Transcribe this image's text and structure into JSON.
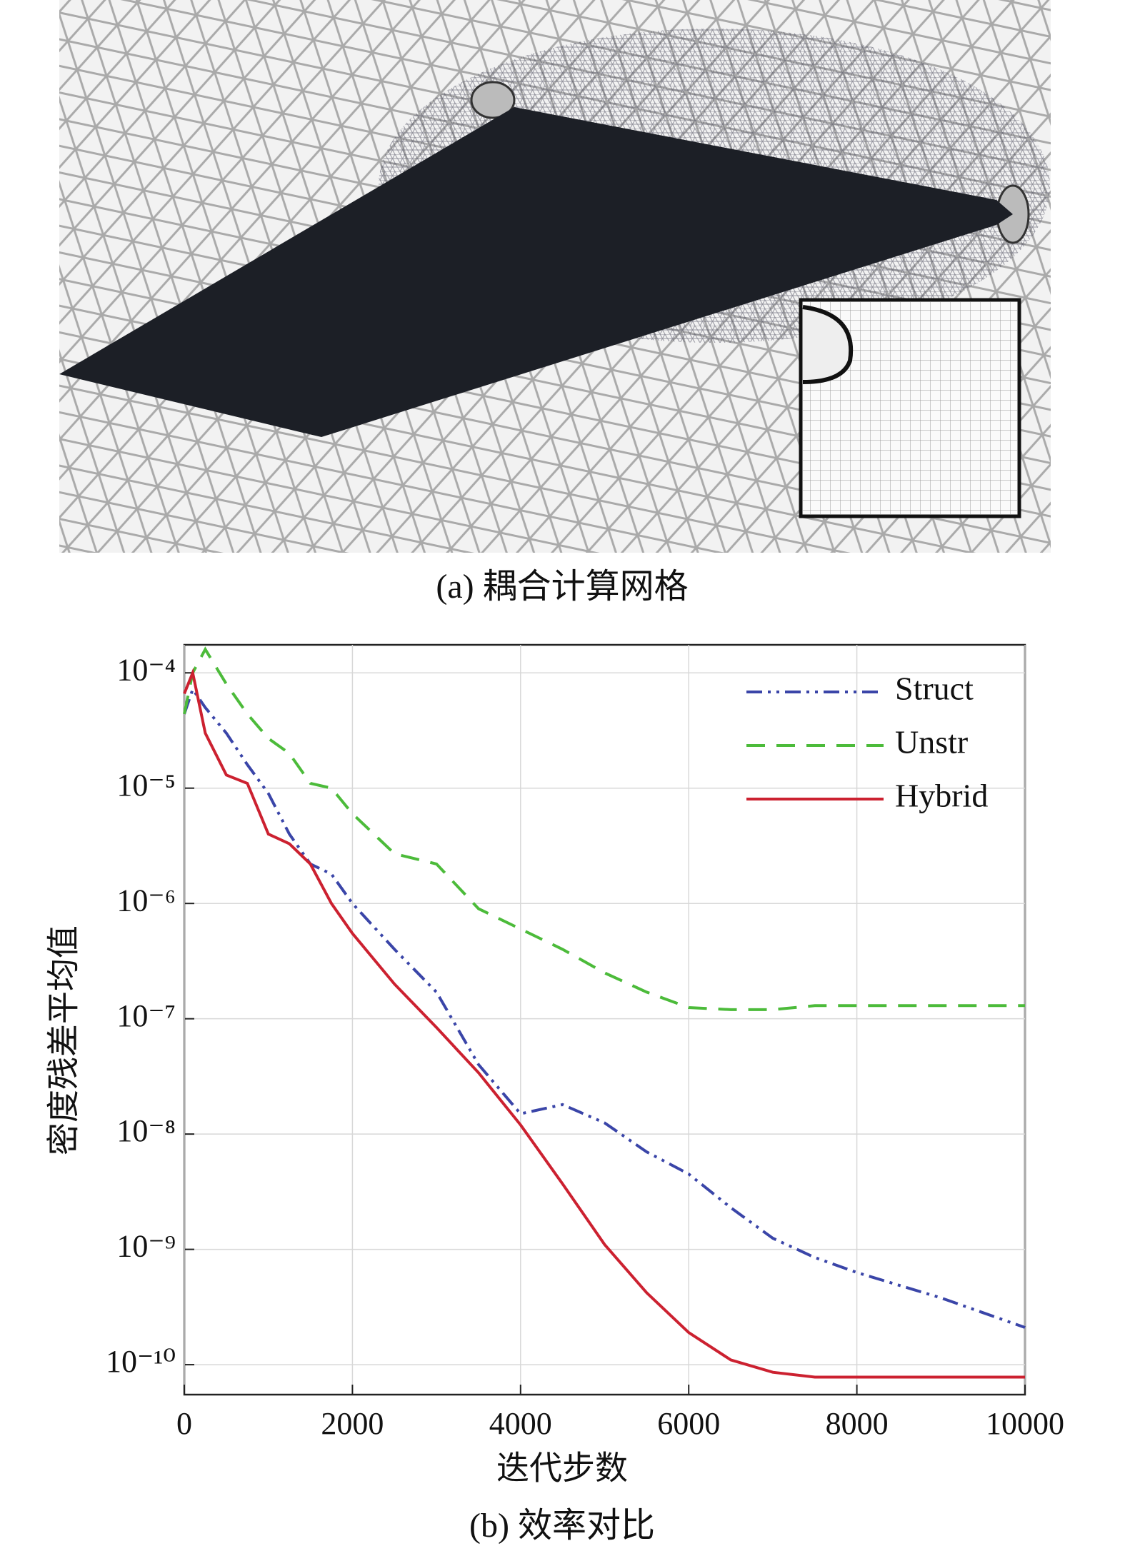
{
  "caption_a": "(a) 耦合计算网格",
  "chart_data": {
    "type": "line",
    "caption": "(b) 效率对比",
    "x_label": "迭代步数",
    "y_label": "密度残差平均值",
    "x": [
      0,
      100,
      250,
      500,
      750,
      1000,
      1250,
      1500,
      1750,
      2000,
      2500,
      3000,
      3500,
      4000,
      4500,
      5000,
      5500,
      6000,
      6500,
      7000,
      7500,
      8000,
      9000,
      10000
    ],
    "series": [
      {
        "name": "Struct",
        "color": "#3a45a8",
        "style": "dashdot",
        "values": [
          4.4e-05,
          7.2e-05,
          5e-05,
          3e-05,
          1.6e-05,
          9e-06,
          4e-06,
          2.2e-06,
          1.8e-06,
          1e-06,
          4e-07,
          1.7e-07,
          4e-08,
          1.5e-08,
          1.8e-08,
          1.25e-08,
          7e-09,
          4.5e-09,
          2.3e-09,
          1.25e-09,
          8.5e-10,
          6.3e-10,
          3.8e-10,
          2.1e-10
        ]
      },
      {
        "name": "Unstr",
        "color": "#4cbb3a",
        "style": "dashed",
        "values": [
          4.4e-05,
          0.0001,
          0.00016,
          8e-05,
          4.4e-05,
          2.7e-05,
          2e-05,
          1.1e-05,
          1e-05,
          6e-06,
          2.7e-06,
          2.2e-06,
          9e-07,
          6e-07,
          4e-07,
          2.5e-07,
          1.7e-07,
          1.25e-07,
          1.2e-07,
          1.2e-07,
          1.3e-07,
          1.3e-07,
          1.3e-07,
          1.3e-07
        ]
      },
      {
        "name": "Hybrid",
        "color": "#cc2130",
        "style": "solid",
        "values": [
          6.6e-05,
          0.0001,
          3e-05,
          1.3e-05,
          1.1e-05,
          4e-06,
          3.3e-06,
          2.2e-06,
          1e-06,
          5.5e-07,
          2e-07,
          8.4e-08,
          3.4e-08,
          1.2e-08,
          3.7e-09,
          1.1e-09,
          4.2e-10,
          1.9e-10,
          1.1e-10,
          8.6e-11,
          7.8e-11,
          7.8e-11,
          7.8e-11,
          7.8e-11
        ]
      }
    ],
    "xlim": [
      0,
      10000
    ],
    "xticks": [
      0,
      2000,
      4000,
      6000,
      8000,
      10000
    ],
    "ylim": [
      5.5e-11,
      0.000175
    ],
    "log_y": true,
    "yticks": [
      {
        "value": 0.0001,
        "label": "10⁻⁴"
      },
      {
        "value": 1e-05,
        "label": "10⁻⁵"
      },
      {
        "value": 1e-06,
        "label": "10⁻⁶"
      },
      {
        "value": 1e-07,
        "label": "10⁻⁷"
      },
      {
        "value": 1e-08,
        "label": "10⁻⁸"
      },
      {
        "value": 1e-09,
        "label": "10⁻⁹"
      },
      {
        "value": 1e-10,
        "label": "10⁻¹⁰"
      }
    ],
    "grid": true,
    "legend": "upper-right"
  }
}
